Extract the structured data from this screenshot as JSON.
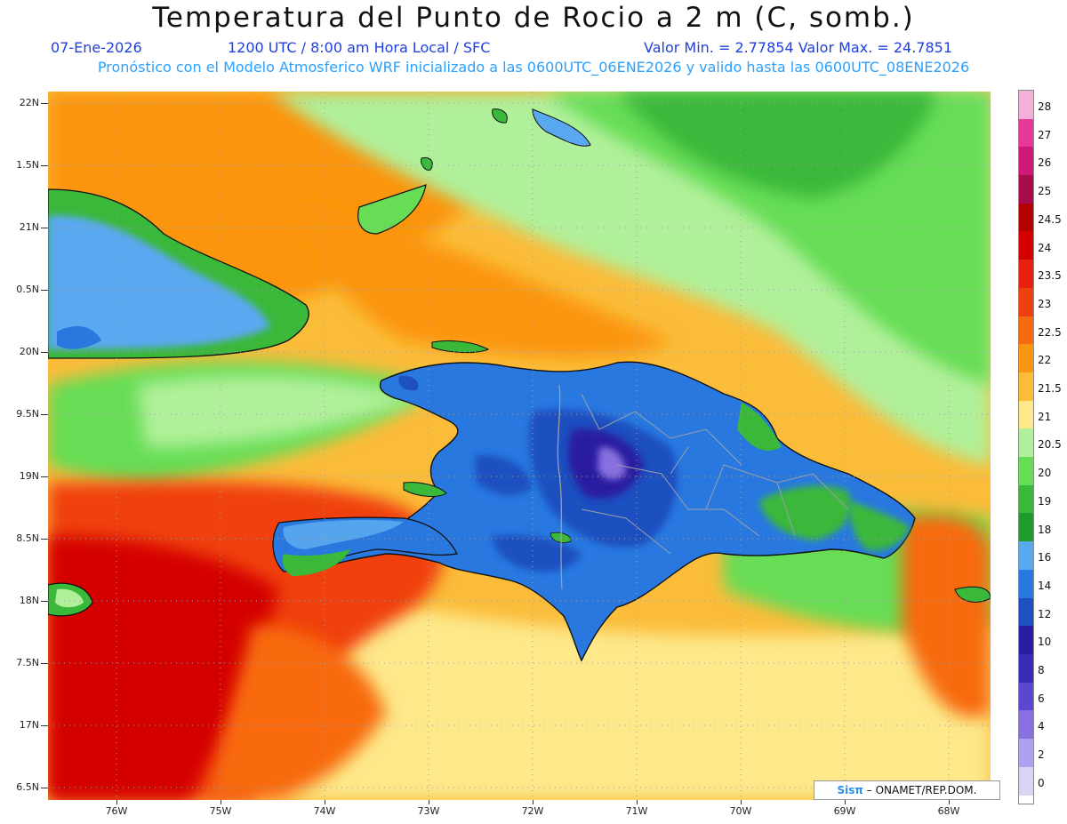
{
  "header": {
    "title": "Temperatura del Punto de Rocio a 2 m (C, somb.)",
    "date": "07-Ene-2026",
    "time": "1200 UTC / 8:00 am Hora Local / SFC",
    "minmax": "Valor Min. = 2.77854  Valor Max. = 24.7851",
    "description": "Pronóstico con el Modelo Atmosferico WRF inicializado a las 0600UTC_06ENE2026 y valido hasta las  0600UTC_08ENE2026"
  },
  "axes": {
    "lat_labels": [
      "22N",
      "1.5N",
      "21N",
      "0.5N",
      "20N",
      "9.5N",
      "19N",
      "8.5N",
      "18N",
      "7.5N",
      "17N",
      "6.5N"
    ],
    "lon_labels": [
      "76W",
      "75W",
      "74W",
      "73W",
      "72W",
      "71W",
      "70W",
      "69W",
      "68W"
    ]
  },
  "colorbar": {
    "labels": [
      "28",
      "27",
      "26",
      "25",
      "24.5",
      "24",
      "23.5",
      "23",
      "22.5",
      "22",
      "21.5",
      "21",
      "20.5",
      "20",
      "19",
      "18",
      "16",
      "14",
      "12",
      "10",
      "8",
      "6",
      "4",
      "2",
      "0"
    ],
    "colors": [
      "#f4b0d8",
      "#e8389a",
      "#d01878",
      "#a80c4a",
      "#b40000",
      "#d40000",
      "#e82010",
      "#f04010",
      "#f86a10",
      "#fb9510",
      "#fbbc3a",
      "#fde88a",
      "#b0f09a",
      "#66dd55",
      "#3ab83a",
      "#1e9a2e",
      "#5aa8f0",
      "#2878e0",
      "#1e50c0",
      "#2a1ea0",
      "#3a2ab8",
      "#5a48d0",
      "#8870e0",
      "#b0a0f0",
      "#d8d4f4"
    ]
  },
  "credit": {
    "brand": "Sisπ",
    "text": "– ONAMET/REP.DOM."
  }
}
